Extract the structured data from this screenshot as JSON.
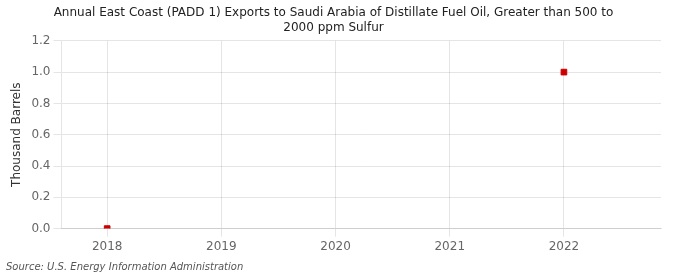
{
  "chart_data": {
    "type": "scatter",
    "title": "Annual East Coast (PADD 1) Exports to Saudi Arabia of Distillate Fuel Oil, Greater than 500 to\n2000 ppm Sulfur",
    "y_label": "Thousand Barrels",
    "source": "Source: U.S. Energy Information Administration",
    "x": [
      2018,
      2022
    ],
    "values": [
      0.0,
      1.0
    ],
    "color": "#cc0000",
    "marker": "square",
    "xlim": [
      2017.6,
      2022.85
    ],
    "xticks": [
      2018,
      2019,
      2020,
      2021,
      2022
    ],
    "ylim": [
      0.0,
      1.2
    ],
    "yticks": [
      {
        "value": 0.0,
        "label": "0.0"
      },
      {
        "value": 0.2,
        "label": "0.2"
      },
      {
        "value": 0.4,
        "label": "0.4"
      },
      {
        "value": 0.6,
        "label": "0.6"
      },
      {
        "value": 0.8,
        "label": "0.8"
      },
      {
        "value": 1.0,
        "label": "1.0"
      },
      {
        "value": 1.2,
        "label": "1.2"
      }
    ],
    "grid": true
  }
}
